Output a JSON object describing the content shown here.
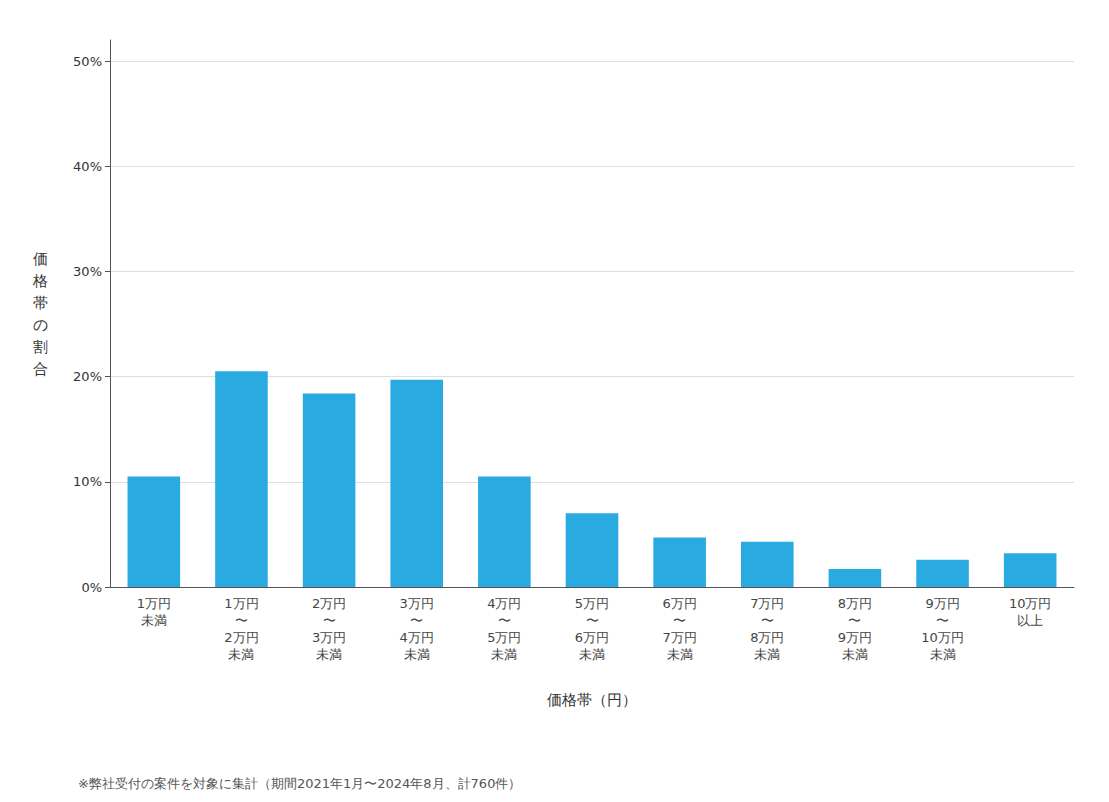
{
  "chart_data": {
    "type": "bar",
    "categories": [
      "1万円\n未満",
      "1万円\n〜\n2万円\n未満",
      "2万円\n〜\n3万円\n未満",
      "3万円\n〜\n4万円\n未満",
      "4万円\n〜\n5万円\n未満",
      "5万円\n〜\n6万円\n未満",
      "6万円\n〜\n7万円\n未満",
      "7万円\n〜\n8万円\n未満",
      "8万円\n〜\n9万円\n未満",
      "9万円\n〜\n10万円\n未満",
      "10万円\n以上"
    ],
    "values": [
      10.5,
      20.5,
      18.4,
      19.7,
      10.5,
      7.0,
      4.7,
      4.3,
      1.7,
      2.6,
      3.2
    ],
    "color": "#29ABE2",
    "xlabel": "価格帯（円）",
    "ylabel": "価格帯の割合",
    "annotations": [
      "※弊社受付の案件を対象に集計（期間2021年1月〜2024年8月、計760件）"
    ],
    "ylim": [
      0,
      52
    ],
    "yticks": [
      {
        "value": 0,
        "label": "0%"
      },
      {
        "value": 10,
        "label": "10%"
      },
      {
        "value": 20,
        "label": "20%"
      },
      {
        "value": 30,
        "label": "30%"
      },
      {
        "value": 40,
        "label": "40%"
      },
      {
        "value": 50,
        "label": "50%"
      }
    ],
    "grid": true
  }
}
